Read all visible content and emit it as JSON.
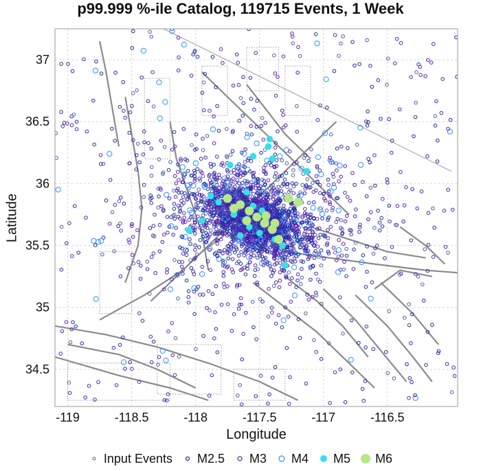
{
  "chart_data": {
    "type": "scatter",
    "title": "p99.999 %-ile Catalog, 119715 Events, 1 Week",
    "xlabel": "Longitude",
    "ylabel": "Latitude",
    "xlim": [
      -119.1,
      -115.95
    ],
    "ylim": [
      34.2,
      37.25
    ],
    "xticks": [
      -119,
      -118.5,
      -118,
      -117.5,
      -117,
      -116.5
    ],
    "yticks": [
      34.5,
      35,
      35.5,
      36,
      36.5,
      37
    ],
    "grid": true,
    "legend_position": "bottom",
    "cluster_center": {
      "lon": -117.55,
      "lat": 35.72
    },
    "series": [
      {
        "name": "Input Events",
        "color": "#4b5fa8",
        "marker": "open-circle-small"
      },
      {
        "name": "M2.5",
        "color": "#1a2aa0",
        "marker": "open-circle"
      },
      {
        "name": "M3",
        "color": "#5a1fb0",
        "marker": "open-circle"
      },
      {
        "name": "M4",
        "color": "#2a90ff",
        "marker": "open-circle-large"
      },
      {
        "name": "M5",
        "color": "#35e0e8",
        "marker": "filled-circle"
      },
      {
        "name": "M6",
        "color": "#b5e887",
        "marker": "filled-circle-large"
      }
    ],
    "large_events": [
      {
        "series": "M5",
        "lon": -117.42,
        "lat": 36.36
      },
      {
        "series": "M5",
        "lon": -117.43,
        "lat": 36.3
      },
      {
        "series": "M5",
        "lon": -117.4,
        "lat": 36.2
      },
      {
        "series": "M5",
        "lon": -117.55,
        "lat": 36.22
      },
      {
        "series": "M5",
        "lon": -117.73,
        "lat": 36.15
      },
      {
        "series": "M5",
        "lon": -117.13,
        "lat": 36.1
      },
      {
        "series": "M5",
        "lon": -117.88,
        "lat": 35.9
      },
      {
        "series": "M5",
        "lon": -117.82,
        "lat": 35.85
      },
      {
        "series": "M5",
        "lon": -117.95,
        "lat": 35.7
      },
      {
        "series": "M5",
        "lon": -118.05,
        "lat": 35.62
      },
      {
        "series": "M5",
        "lon": -117.7,
        "lat": 35.75
      },
      {
        "series": "M5",
        "lon": -117.58,
        "lat": 35.65
      },
      {
        "series": "M5",
        "lon": -117.5,
        "lat": 35.6
      },
      {
        "series": "M5",
        "lon": -117.45,
        "lat": 35.7
      },
      {
        "series": "M5",
        "lon": -117.38,
        "lat": 35.55
      },
      {
        "series": "M5",
        "lon": -117.32,
        "lat": 35.5
      },
      {
        "series": "M5",
        "lon": -117.55,
        "lat": 35.82
      },
      {
        "series": "M5",
        "lon": -117.6,
        "lat": 35.93
      },
      {
        "series": "M5",
        "lon": -117.3,
        "lat": 35.34
      },
      {
        "series": "M5",
        "lon": -117.65,
        "lat": 35.58
      },
      {
        "series": "M5",
        "lon": -117.48,
        "lat": 35.78
      },
      {
        "series": "M6",
        "lon": -117.75,
        "lat": 35.88
      },
      {
        "series": "M6",
        "lon": -117.65,
        "lat": 35.83
      },
      {
        "series": "M6",
        "lon": -117.58,
        "lat": 35.78
      },
      {
        "series": "M6",
        "lon": -117.52,
        "lat": 35.73
      },
      {
        "series": "M6",
        "lon": -117.46,
        "lat": 35.68
      },
      {
        "series": "M6",
        "lon": -117.4,
        "lat": 35.63
      },
      {
        "series": "M6",
        "lon": -117.35,
        "lat": 35.55
      },
      {
        "series": "M6",
        "lon": -117.7,
        "lat": 35.8
      },
      {
        "series": "M6",
        "lon": -117.6,
        "lat": 35.7
      },
      {
        "series": "M6",
        "lon": -117.27,
        "lat": 35.88
      },
      {
        "series": "M6",
        "lon": -117.2,
        "lat": 35.85
      },
      {
        "series": "M6",
        "lon": -117.45,
        "lat": 35.74
      },
      {
        "series": "M6",
        "lon": -117.38,
        "lat": 35.68
      }
    ],
    "faults": [
      [
        [
          -119.1,
          34.85
        ],
        [
          -118.7,
          34.78
        ],
        [
          -118.3,
          34.68
        ],
        [
          -117.9,
          34.55
        ],
        [
          -117.5,
          34.4
        ],
        [
          -117.2,
          34.25
        ]
      ],
      [
        [
          -119.1,
          34.6
        ],
        [
          -118.6,
          34.45
        ],
        [
          -118.2,
          34.35
        ],
        [
          -117.9,
          34.25
        ]
      ],
      [
        [
          -119.0,
          34.7
        ],
        [
          -118.6,
          34.62
        ],
        [
          -118.3,
          34.5
        ],
        [
          -118.0,
          34.35
        ]
      ],
      [
        [
          -118.75,
          34.9
        ],
        [
          -118.4,
          35.1
        ],
        [
          -118.1,
          35.3
        ],
        [
          -117.9,
          35.5
        ],
        [
          -117.7,
          35.7
        ],
        [
          -117.5,
          35.9
        ],
        [
          -117.2,
          36.2
        ],
        [
          -116.9,
          36.5
        ]
      ],
      [
        [
          -118.35,
          35.05
        ],
        [
          -118.15,
          35.25
        ],
        [
          -117.95,
          35.45
        ],
        [
          -117.75,
          35.6
        ]
      ],
      [
        [
          -118.2,
          36.5
        ],
        [
          -118.15,
          36.2
        ],
        [
          -118.05,
          35.9
        ],
        [
          -117.95,
          35.6
        ],
        [
          -117.9,
          35.3
        ]
      ],
      [
        [
          -118.55,
          36.7
        ],
        [
          -118.5,
          36.4
        ],
        [
          -118.45,
          36.1
        ],
        [
          -118.42,
          35.8
        ],
        [
          -118.45,
          35.5
        ],
        [
          -118.55,
          35.2
        ]
      ],
      [
        [
          -118.75,
          37.15
        ],
        [
          -118.7,
          36.9
        ],
        [
          -118.65,
          36.6
        ],
        [
          -118.6,
          36.3
        ]
      ],
      [
        [
          -117.95,
          36.9
        ],
        [
          -117.65,
          36.6
        ],
        [
          -117.35,
          36.3
        ],
        [
          -117.05,
          36.0
        ],
        [
          -116.8,
          35.75
        ]
      ],
      [
        [
          -117.6,
          36.8
        ],
        [
          -117.45,
          36.6
        ],
        [
          -117.3,
          36.4
        ],
        [
          -117.1,
          36.2
        ]
      ],
      [
        [
          -117.3,
          35.45
        ],
        [
          -116.95,
          35.4
        ],
        [
          -116.6,
          35.35
        ],
        [
          -116.2,
          35.3
        ],
        [
          -115.95,
          35.28
        ]
      ],
      [
        [
          -117.55,
          35.2
        ],
        [
          -117.3,
          35.0
        ],
        [
          -117.05,
          34.8
        ],
        [
          -116.8,
          34.55
        ],
        [
          -116.6,
          34.35
        ]
      ],
      [
        [
          -117.3,
          35.25
        ],
        [
          -117.05,
          35.05
        ],
        [
          -116.85,
          34.85
        ],
        [
          -116.65,
          34.6
        ]
      ],
      [
        [
          -117.0,
          35.15
        ],
        [
          -116.75,
          34.9
        ],
        [
          -116.55,
          34.65
        ],
        [
          -116.35,
          34.4
        ]
      ],
      [
        [
          -116.75,
          35.1
        ],
        [
          -116.5,
          34.85
        ],
        [
          -116.3,
          34.6
        ],
        [
          -116.15,
          34.4
        ]
      ],
      [
        [
          -116.55,
          35.2
        ],
        [
          -116.3,
          34.95
        ],
        [
          -116.1,
          34.7
        ]
      ],
      [
        [
          -117.1,
          35.65
        ],
        [
          -116.8,
          35.55
        ],
        [
          -116.5,
          35.45
        ],
        [
          -116.2,
          35.4
        ]
      ],
      [
        [
          -116.6,
          35.15
        ],
        [
          -116.4,
          35.3
        ],
        [
          -116.15,
          35.25
        ]
      ],
      [
        [
          -116.4,
          35.65
        ],
        [
          -116.2,
          35.5
        ],
        [
          -116.05,
          35.35
        ]
      ]
    ],
    "border_line": [
      [
        -118.25,
        37.25
      ],
      [
        -116.0,
        36.1
      ]
    ]
  }
}
